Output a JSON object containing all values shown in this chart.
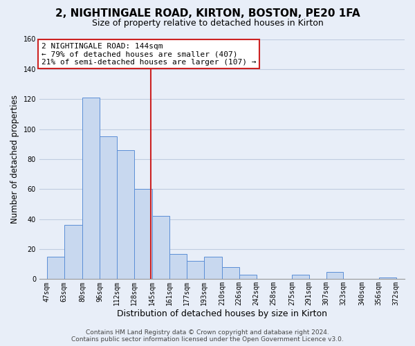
{
  "title": "2, NIGHTINGALE ROAD, KIRTON, BOSTON, PE20 1FA",
  "subtitle": "Size of property relative to detached houses in Kirton",
  "xlabel": "Distribution of detached houses by size in Kirton",
  "ylabel": "Number of detached properties",
  "bar_left_edges": [
    47,
    63,
    80,
    96,
    112,
    128,
    145,
    161,
    177,
    193,
    210,
    226,
    242,
    258,
    275,
    291,
    307,
    323,
    340,
    356
  ],
  "bar_widths": [
    16,
    17,
    16,
    16,
    16,
    17,
    16,
    16,
    16,
    17,
    16,
    16,
    16,
    17,
    16,
    16,
    16,
    17,
    16,
    16
  ],
  "bar_heights": [
    15,
    36,
    121,
    95,
    86,
    60,
    42,
    17,
    12,
    15,
    8,
    3,
    0,
    0,
    3,
    0,
    5,
    0,
    0,
    1
  ],
  "x_tick_labels": [
    "47sqm",
    "63sqm",
    "80sqm",
    "96sqm",
    "112sqm",
    "128sqm",
    "145sqm",
    "161sqm",
    "177sqm",
    "193sqm",
    "210sqm",
    "226sqm",
    "242sqm",
    "258sqm",
    "275sqm",
    "291sqm",
    "307sqm",
    "323sqm",
    "340sqm",
    "356sqm",
    "372sqm"
  ],
  "x_tick_positions": [
    47,
    63,
    80,
    96,
    112,
    128,
    145,
    161,
    177,
    193,
    210,
    226,
    242,
    258,
    275,
    291,
    307,
    323,
    340,
    356,
    372
  ],
  "ylim": [
    0,
    160
  ],
  "xlim": [
    40,
    380
  ],
  "bar_color": "#c8d8ef",
  "bar_edge_color": "#5b8ed6",
  "vline_x": 144,
  "vline_color": "#cc2222",
  "annotation_line1": "2 NIGHTINGALE ROAD: 144sqm",
  "annotation_line2": "← 79% of detached houses are smaller (407)",
  "annotation_line3": "21% of semi-detached houses are larger (107) →",
  "footer_line1": "Contains HM Land Registry data © Crown copyright and database right 2024.",
  "footer_line2": "Contains public sector information licensed under the Open Government Licence v3.0.",
  "bg_color": "#e8eef8",
  "plot_bg_color": "#e8eef8",
  "grid_color": "#c0cce0",
  "title_fontsize": 11,
  "subtitle_fontsize": 9,
  "ylabel_fontsize": 8.5,
  "xlabel_fontsize": 9,
  "tick_fontsize": 7,
  "footer_fontsize": 6.5,
  "annotation_fontsize": 8
}
